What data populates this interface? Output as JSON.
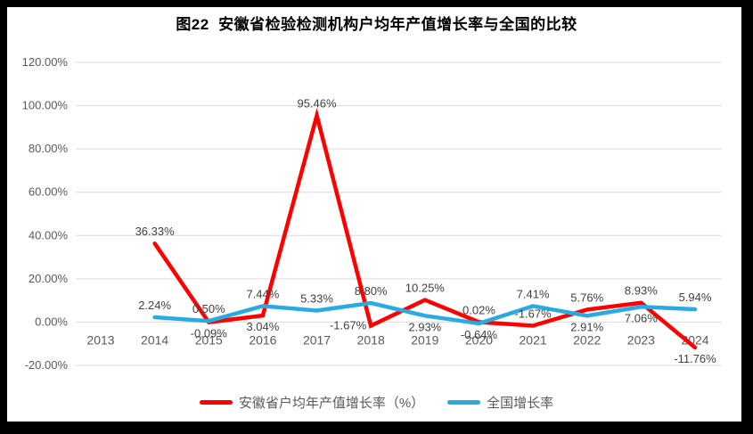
{
  "title": "图22  安徽省检验检测机构户均年产值增长率与全国的比较",
  "frame_color": "#000000",
  "chart_data": {
    "type": "line",
    "categories": [
      "2013",
      "2014",
      "2015",
      "2016",
      "2017",
      "2018",
      "2019",
      "2020",
      "2021",
      "2022",
      "2023",
      "2024"
    ],
    "series": [
      {
        "name": "安徽省户均年产值增长率（%）",
        "color": "#ff0000",
        "values": [
          null,
          36.33,
          -0.09,
          3.04,
          95.46,
          -1.67,
          10.25,
          0.02,
          -1.67,
          5.76,
          8.93,
          -11.76
        ],
        "labels": [
          null,
          "36.33%",
          "-0.09%",
          "3.04%",
          "95.46%",
          "-1.67%",
          "10.25%",
          "0.02%",
          "-1.67%",
          "5.76%",
          "8.93%",
          "-11.76%"
        ],
        "label_side": [
          null,
          "above",
          "below",
          "below",
          "above",
          "left",
          "above",
          "above",
          "above",
          "above",
          "above",
          "below"
        ]
      },
      {
        "name": "全国增长率",
        "color": "#29abe2",
        "values": [
          null,
          2.24,
          0.5,
          7.44,
          5.33,
          8.8,
          2.93,
          -0.64,
          7.41,
          2.91,
          7.06,
          5.94
        ],
        "labels": [
          null,
          "2.24%",
          "0.50%",
          "7.44%",
          "5.33%",
          "8.80%",
          "2.93%",
          "-0.64%",
          "7.41%",
          "2.91%",
          "7.06%",
          "5.94%"
        ],
        "label_side": [
          null,
          "above",
          "above",
          "above",
          "above",
          "above",
          "below",
          "below",
          "above",
          "below",
          "below",
          "above"
        ]
      }
    ],
    "yticks": [
      {
        "value": 120,
        "label": "120.00%"
      },
      {
        "value": 100,
        "label": "100.00%"
      },
      {
        "value": 80,
        "label": "80.00%"
      },
      {
        "value": 60,
        "label": "60.00%"
      },
      {
        "value": 40,
        "label": "40.00%"
      },
      {
        "value": 20,
        "label": "20.00%"
      },
      {
        "value": 0,
        "label": "0.00%"
      },
      {
        "value": -20,
        "label": "-20.00%"
      }
    ],
    "ylim": [
      -20,
      120
    ],
    "grid": true,
    "legend_position": "bottom",
    "xlabel": "",
    "ylabel": ""
  }
}
